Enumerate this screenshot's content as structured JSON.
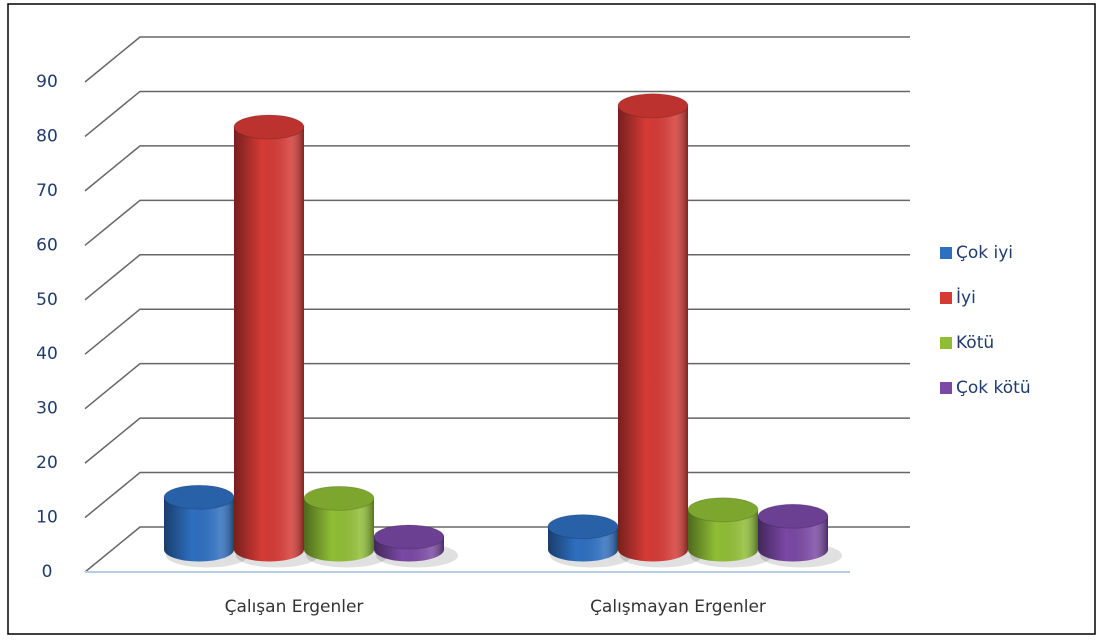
{
  "chart_data": {
    "type": "bar3d",
    "categories": [
      "Çalışan Ergenler",
      "Çalışmayan Ergenler"
    ],
    "series": [
      {
        "name": "Çok iyi",
        "color": "#2e6fc0",
        "values": [
          9.6,
          4.2
        ]
      },
      {
        "name": "İyi",
        "color": "#d53a35",
        "values": [
          77.6,
          81.5
        ]
      },
      {
        "name": "Kötü",
        "color": "#8fbe35",
        "values": [
          9.4,
          7.3
        ]
      },
      {
        "name": "Çok kötü",
        "color": "#7a48a5",
        "values": [
          2.3,
          6.1
        ]
      }
    ],
    "ylim": [
      0,
      90
    ],
    "yticks": [
      0,
      10,
      20,
      30,
      40,
      50,
      60,
      70,
      80,
      90
    ],
    "grid": true,
    "legend": "right"
  }
}
